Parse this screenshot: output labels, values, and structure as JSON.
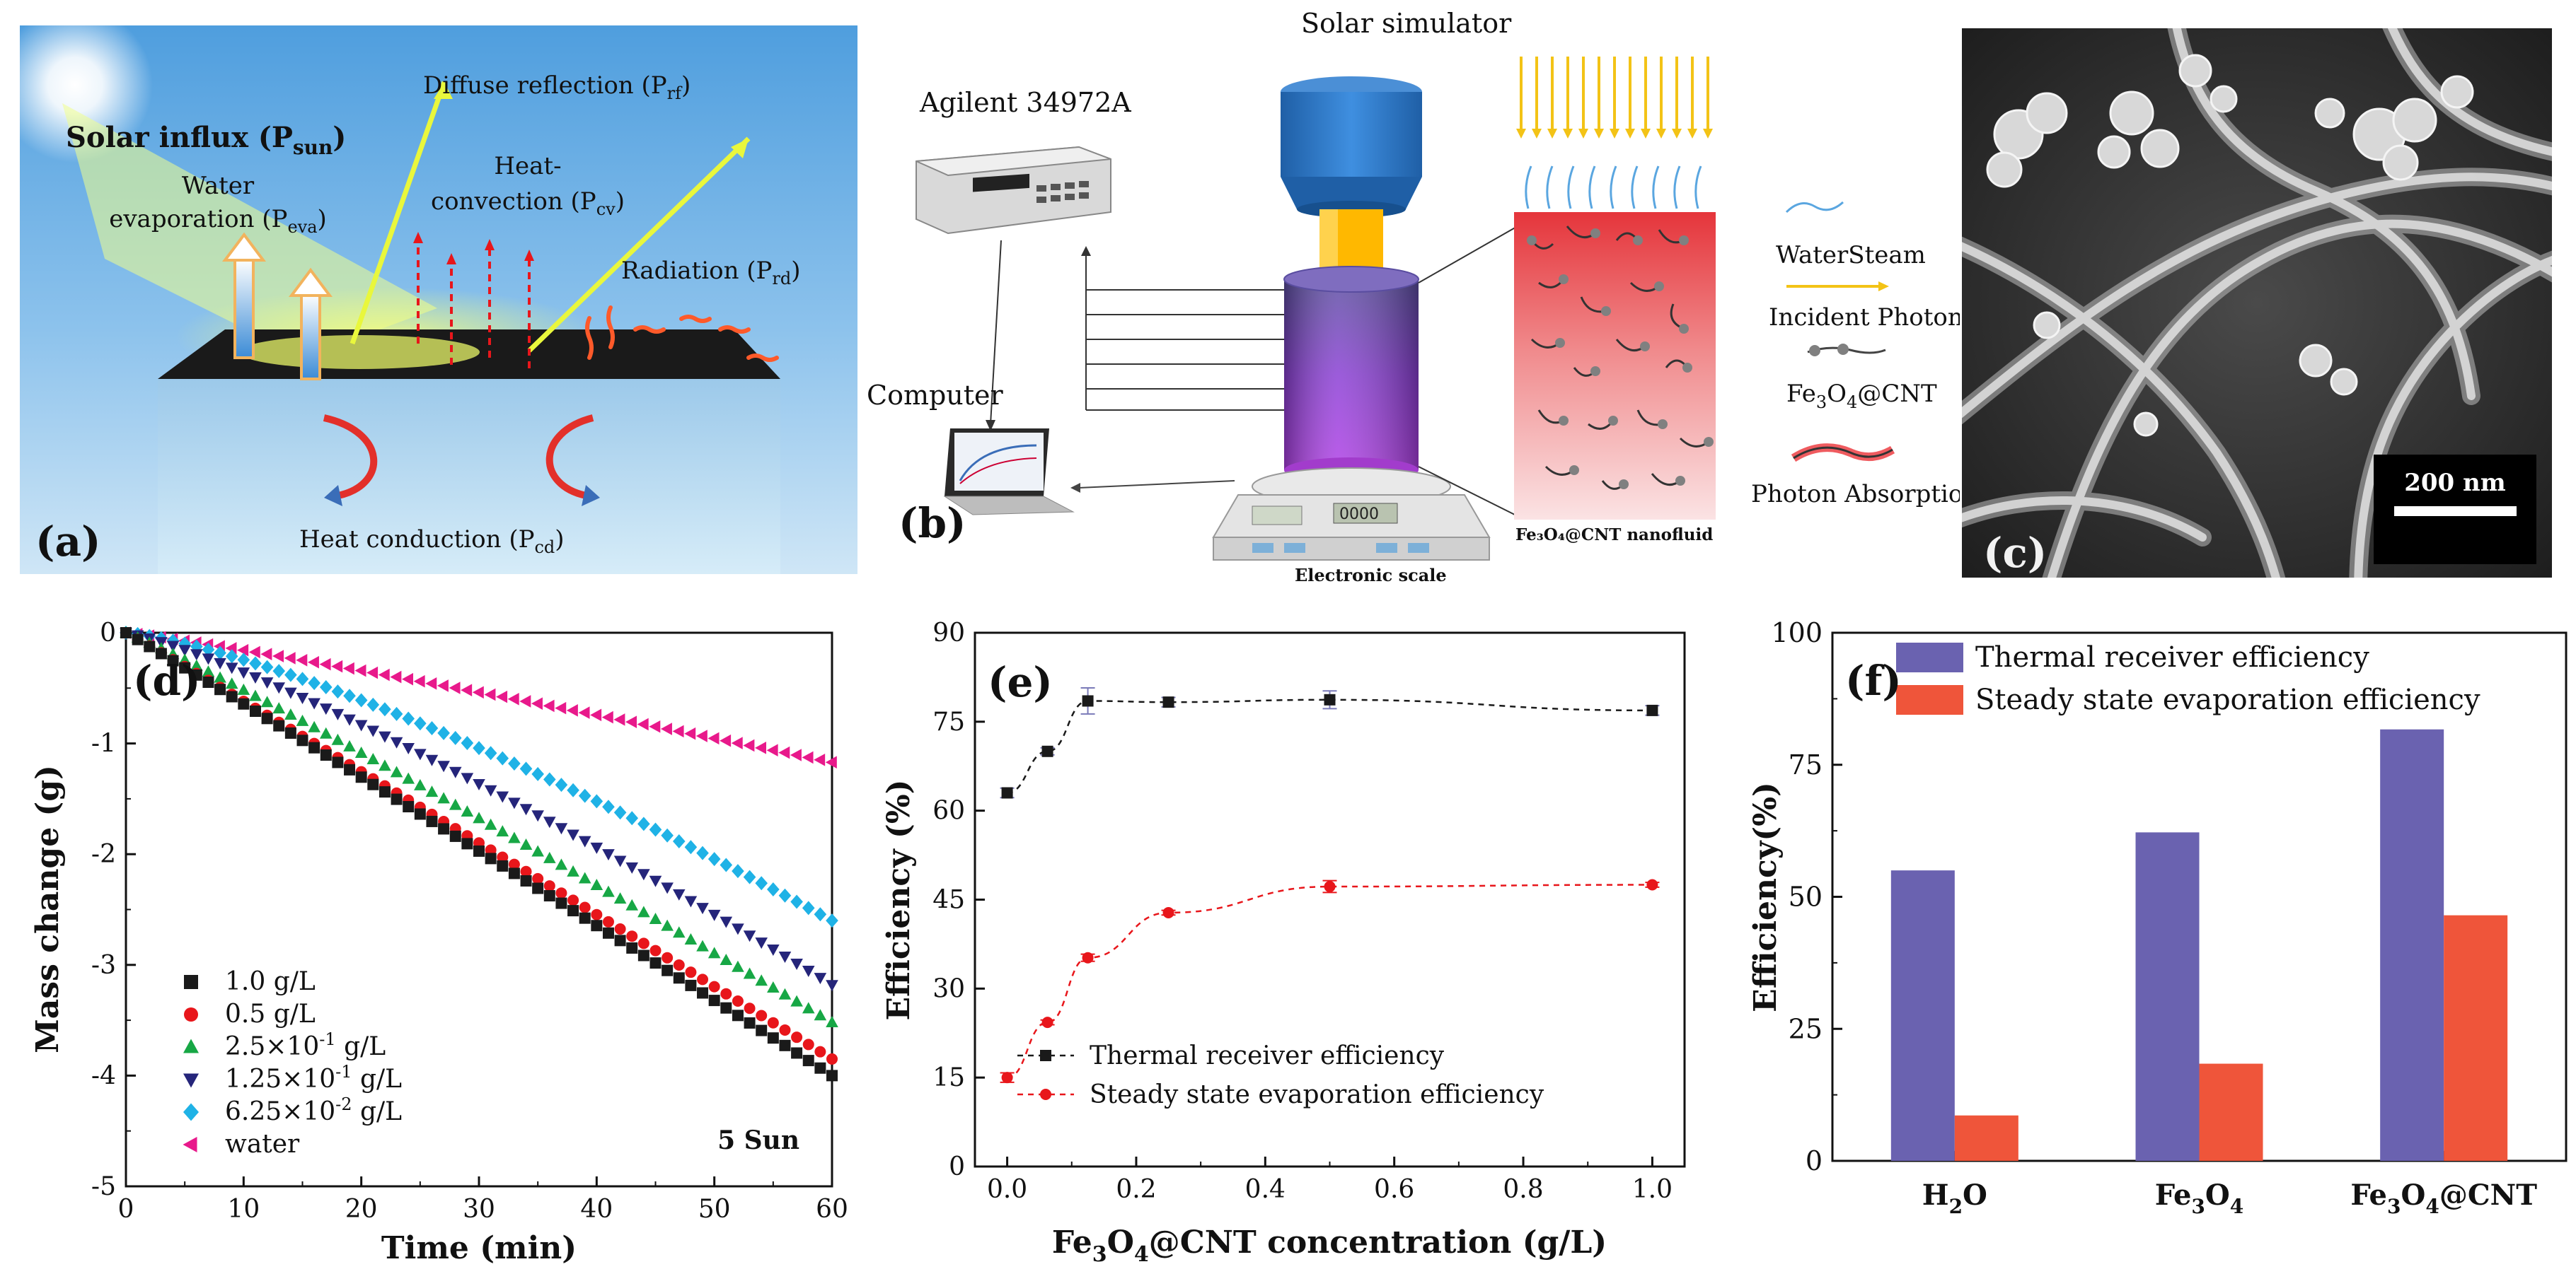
{
  "panel_a": {
    "label": "(a)",
    "solar_influx": "Solar influx (P",
    "solar_influx_sub": "sun",
    "water_evap_1": "Water",
    "water_evap_2": "evaporation (P",
    "water_evap_sub": "eva",
    "diffuse": "Diffuse reflection (P",
    "diffuse_sub": "rf",
    "heat_conv_1": "Heat-",
    "heat_conv_2": "convection (P",
    "heat_conv_sub": "cv",
    "radiation": "Radiation (P",
    "radiation_sub": "rd",
    "heat_cond": "Heat conduction (P",
    "heat_cond_sub": "cd",
    "close_paren": ")"
  },
  "panel_b": {
    "label": "(b)",
    "solar_simulator": "Solar simulator",
    "agilent": "Agilent 34972A",
    "computer": "Computer",
    "scale": "Electronic scale",
    "scale_display": "0000",
    "nanofluid": "Fe₃O₄@CNT nanofluid",
    "legend_steam": "WaterSteam",
    "legend_photon": "Incident Photon",
    "legend_fe": "Fe",
    "legend_fe_s1": "3",
    "legend_fe_o": "O",
    "legend_fe_s2": "4",
    "legend_fe_cnt": "@CNT",
    "legend_absorb": "Photon Absorption"
  },
  "panel_c": {
    "label": "(c)",
    "scalebar": "200 nm"
  },
  "colors": {
    "black": "#1a1a1a",
    "red": "#e8161b",
    "green": "#17a745",
    "navy": "#25257a",
    "cyan": "#1fb2e6",
    "magenta": "#e8198b",
    "bar_blue": "#6a62b0",
    "bar_red": "#ef553a"
  },
  "chart_data": [
    {
      "id": "d",
      "label": "(d)",
      "type": "scatter",
      "xlabel": "Time (min)",
      "ylabel": "Mass change (g)",
      "xlim": [
        0,
        60
      ],
      "ylim": [
        -5,
        0
      ],
      "xticks": [
        "0",
        "10",
        "20",
        "30",
        "40",
        "50",
        "60"
      ],
      "yticks": [
        "0",
        "-1",
        "-2",
        "-3",
        "-4",
        "-5"
      ],
      "annotation": "5 Sun",
      "x_step": 1,
      "series": [
        {
          "name": "1.0 g/L",
          "marker": "square",
          "color": "#1a1a1a",
          "end_value": -4.0,
          "curvature": 0.9
        },
        {
          "name": "0.5 g/L",
          "marker": "circle",
          "color": "#e8161b",
          "end_value": -3.85,
          "curvature": 0.9
        },
        {
          "name": "2.5×10⁻¹ g/L",
          "marker": "triangle-up",
          "color": "#17a745",
          "end_value": -3.52,
          "curvature": 0.95
        },
        {
          "name": "1.25×10⁻¹ g/L",
          "marker": "triangle-down",
          "color": "#25257a",
          "end_value": -3.18,
          "curvature": 1.1
        },
        {
          "name": "6.25×10⁻² g/L",
          "marker": "diamond",
          "color": "#1fb2e6",
          "end_value": -2.6,
          "curvature": 1.2
        },
        {
          "name": "water",
          "marker": "triangle-left",
          "color": "#e8198b",
          "end_value": -1.17,
          "curvature": 1.0
        }
      ],
      "legend": [
        {
          "marker": "square",
          "color": "#1a1a1a",
          "pre": "1.0 g/L",
          "exp": "",
          "post": ""
        },
        {
          "marker": "circle",
          "color": "#e8161b",
          "pre": "0.5 g/L",
          "exp": "",
          "post": ""
        },
        {
          "marker": "triangle-up",
          "color": "#17a745",
          "pre": "2.5×10",
          "exp": "-1",
          "post": " g/L"
        },
        {
          "marker": "triangle-down",
          "color": "#25257a",
          "pre": "1.25×10",
          "exp": "-1",
          "post": " g/L"
        },
        {
          "marker": "diamond",
          "color": "#1fb2e6",
          "pre": "6.25×10",
          "exp": "-2",
          "post": " g/L"
        },
        {
          "marker": "triangle-left",
          "color": "#e8198b",
          "pre": " water",
          "exp": "",
          "post": ""
        }
      ]
    },
    {
      "id": "e",
      "label": "(e)",
      "type": "line",
      "xlabel_pre": "Fe",
      "xlabel_s1": "3",
      "xlabel_mid": "O",
      "xlabel_s2": "4",
      "xlabel_post": "@CNT concentration (g/L)",
      "ylabel": "Efficiency (%)",
      "xlim": [
        -0.05,
        1.05
      ],
      "ylim": [
        0,
        90
      ],
      "xticks": [
        0.0,
        0.2,
        0.4,
        0.6,
        0.8,
        1.0
      ],
      "xtick_labels": [
        "0.0",
        "0.2",
        "0.4",
        "0.6",
        "0.8",
        "1.0"
      ],
      "yticks": [
        0,
        15,
        30,
        45,
        60,
        75,
        90
      ],
      "x": [
        0.0,
        0.0625,
        0.125,
        0.25,
        0.5,
        1.0
      ],
      "series": [
        {
          "name": "Thermal receiver efficiency",
          "marker": "square",
          "color": "#1a1a1a",
          "values": [
            63.0,
            70.0,
            78.5,
            78.3,
            78.7,
            76.9
          ],
          "errors": [
            0.8,
            0.6,
            2.2,
            0.8,
            1.5,
            0.8
          ]
        },
        {
          "name": "Steady state evaporation efficiency",
          "marker": "circle",
          "color": "#e8161b",
          "values": [
            15.0,
            24.3,
            35.2,
            42.8,
            47.2,
            47.5
          ],
          "errors": [
            0.8,
            0.4,
            0.6,
            0.4,
            1.0,
            0.4
          ]
        }
      ]
    },
    {
      "id": "f",
      "label": "(f)",
      "type": "bar",
      "ylabel": "Efficiency(%)",
      "ylim": [
        0,
        100
      ],
      "yticks": [
        0,
        25,
        50,
        75,
        100
      ],
      "categories": [
        {
          "pre": "H",
          "s1": "2",
          "mid": "O",
          "s2": "",
          "post": ""
        },
        {
          "pre": "Fe",
          "s1": "3",
          "mid": "O",
          "s2": "4",
          "post": ""
        },
        {
          "pre": "Fe",
          "s1": "3",
          "mid": "O",
          "s2": "4",
          "post": "@CNT"
        }
      ],
      "series": [
        {
          "name": "Thermal receiver efficiency",
          "color": "#6a62b0",
          "values": [
            55.0,
            62.2,
            81.7
          ]
        },
        {
          "name": "Steady state evaporation efficiency",
          "color": "#ef553a",
          "values": [
            8.6,
            18.4,
            46.5
          ]
        }
      ]
    }
  ]
}
